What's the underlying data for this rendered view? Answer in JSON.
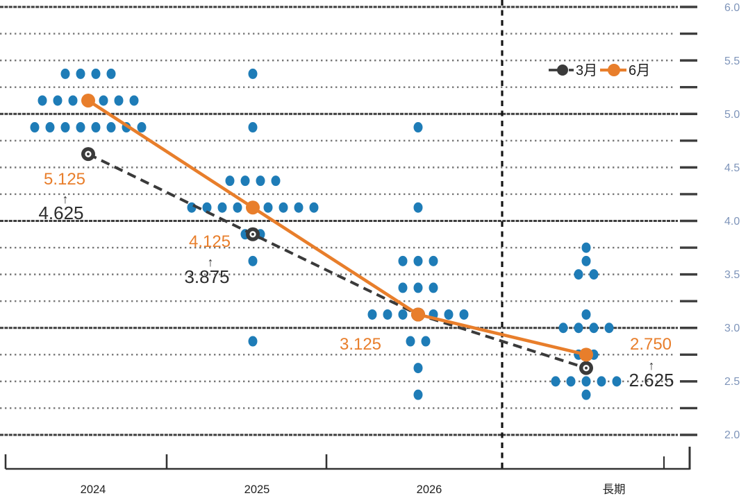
{
  "legend": {
    "march_label": "3月",
    "june_label": "6月"
  },
  "y_axis": {
    "labels": [
      "6.0",
      "5.5",
      "5.0",
      "4.5",
      "4.0",
      "3.5",
      "3.0",
      "2.5",
      "2.0"
    ],
    "min": 2.0,
    "max": 6.0,
    "label_step": 0.5
  },
  "x_axis": {
    "labels": [
      "2024",
      "2025",
      "2026",
      "長期"
    ]
  },
  "annotations": {
    "y2024": {
      "june": "5.125",
      "arrow": "↑",
      "march": "4.625"
    },
    "y2025": {
      "june": "4.125",
      "arrow": "↑",
      "march": "3.875"
    },
    "y2026": {
      "june": "3.125"
    },
    "longrun": {
      "june": "2.750",
      "arrow": "↑",
      "march": "2.625"
    }
  },
  "colors": {
    "dot_blue": "#1E7CB7",
    "june_orange": "#E87E2B",
    "march_dark": "#3A3A3A",
    "axis_label_blue": "#7F95BA",
    "grid_major": "#3D3D3D",
    "grid_minor": "#767676",
    "divider_black": "#151515"
  },
  "chart_data": {
    "type": "scatter",
    "subtype": "fomc-dot-plot",
    "categories": [
      "2024",
      "2025",
      "2026",
      "長期"
    ],
    "ylim": [
      2.0,
      6.0
    ],
    "grid": {
      "minor_step": 0.25,
      "major_lines": [
        6.0,
        5.0,
        4.0,
        3.0,
        2.0
      ],
      "minor_style": "dotted"
    },
    "divider_after_category": "2026",
    "legend_position": "top-right",
    "dots": {
      "2024": {
        "5.375": 4,
        "5.125": 7,
        "4.875": 8
      },
      "2025": {
        "5.375": 1,
        "4.875": 1,
        "4.375": 4,
        "4.125": 9,
        "3.875": 2,
        "3.625": 1,
        "2.875": 1
      },
      "2026": {
        "4.875": 1,
        "4.125": 1,
        "3.625": 3,
        "3.375": 3,
        "3.125": 7,
        "2.875": 2,
        "2.625": 1,
        "2.375": 1
      },
      "長期": {
        "3.75": 1,
        "3.625": 1,
        "3.5": 2,
        "3.125": 1,
        "3.0": 4,
        "2.75": 2,
        "2.625": 1,
        "2.5": 5,
        "2.375": 1
      }
    },
    "series": [
      {
        "name": "3月",
        "style": "dashed",
        "marker": "ring",
        "values": {
          "2024": 4.625,
          "2025": 3.875,
          "2026": 3.125,
          "長期": 2.625
        }
      },
      {
        "name": "6月",
        "style": "solid",
        "marker": "filled",
        "values": {
          "2024": 5.125,
          "2025": 4.125,
          "2026": 3.125,
          "長期": 2.75
        }
      }
    ]
  }
}
